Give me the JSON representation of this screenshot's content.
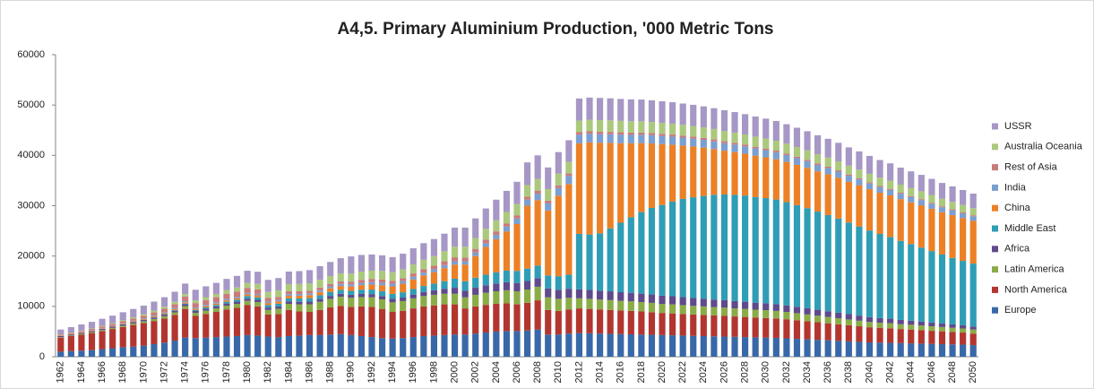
{
  "chart_data": {
    "type": "stacked-bar",
    "title": "A4,5. Primary Aluminium Production, '000 Metric Tons",
    "categories": [
      "1962",
      null,
      "1964",
      null,
      "1966",
      null,
      "1968",
      null,
      "1970",
      null,
      "1972",
      null,
      "1974",
      null,
      "1976",
      null,
      "1978",
      null,
      "1980",
      null,
      "1982",
      null,
      "1984",
      null,
      "1986",
      null,
      "1988",
      null,
      "1990",
      null,
      "1992",
      null,
      "1994",
      null,
      "1996",
      null,
      "1998",
      null,
      "2000",
      null,
      "2002",
      null,
      "2004",
      null,
      "2006",
      null,
      "2008",
      null,
      "2010",
      null,
      "2012",
      null,
      "2014",
      null,
      "2016",
      null,
      "2018",
      null,
      "2020",
      null,
      "2022",
      null,
      "2024",
      null,
      "2026",
      null,
      "2028",
      null,
      "2030",
      null,
      "2032",
      null,
      "2034",
      null,
      "2036",
      null,
      "2038",
      null,
      "2040",
      null,
      "2042",
      null,
      "2044",
      null,
      "2046",
      null,
      "2048",
      null,
      "2050"
    ],
    "ylim": [
      0,
      60000
    ],
    "yticks": [
      0,
      10000,
      20000,
      30000,
      40000,
      50000,
      60000
    ],
    "grid": false,
    "legend": "right",
    "series": [
      {
        "name": "Europe",
        "color": "#3868a8",
        "values": [
          1000,
          1100,
          1200,
          1300,
          1500,
          1700,
          1900,
          2000,
          2200,
          2500,
          2800,
          3200,
          3800,
          3700,
          3800,
          3900,
          4000,
          4100,
          4300,
          4200,
          4000,
          3900,
          4100,
          4200,
          4300,
          4300,
          4400,
          4500,
          4300,
          4100,
          3900,
          3700,
          3600,
          3700,
          3900,
          4100,
          4200,
          4300,
          4400,
          4400,
          4600,
          4800,
          5000,
          5100,
          5100,
          5200,
          5400,
          4400,
          4400,
          4600,
          4700,
          4650,
          4600,
          4550,
          4500,
          4450,
          4400,
          4350,
          4300,
          4250,
          4200,
          4150,
          4100,
          4050,
          4000,
          3950,
          3900,
          3850,
          3800,
          3750,
          3650,
          3550,
          3450,
          3350,
          3250,
          3150,
          3050,
          2950,
          2850,
          2800,
          2750,
          2700,
          2650,
          2600,
          2550,
          2500,
          2450,
          2400,
          2300
        ]
      },
      {
        "name": "North America",
        "color": "#b2362f",
        "values": [
          2800,
          3000,
          3200,
          3400,
          3600,
          3800,
          4000,
          4300,
          4500,
          4600,
          4800,
          5100,
          5700,
          4400,
          4700,
          5000,
          5400,
          5600,
          6000,
          5800,
          4400,
          4600,
          5200,
          4800,
          4600,
          5000,
          5400,
          5600,
          5600,
          5900,
          6000,
          5800,
          5300,
          5400,
          5700,
          5900,
          6000,
          6100,
          6000,
          5200,
          5400,
          5500,
          5500,
          5500,
          5300,
          5500,
          5800,
          4900,
          4700,
          4800,
          4900,
          4850,
          4800,
          4750,
          4700,
          4650,
          4600,
          4500,
          4400,
          4350,
          4300,
          4250,
          4200,
          4150,
          4100,
          4050,
          4000,
          3950,
          3900,
          3850,
          3800,
          3700,
          3600,
          3500,
          3400,
          3300,
          3200,
          3100,
          3000,
          2950,
          2900,
          2800,
          2750,
          2700,
          2600,
          2550,
          2450,
          2400,
          2300
        ]
      },
      {
        "name": "Latin America",
        "color": "#8aac46",
        "values": [
          100,
          120,
          150,
          180,
          200,
          230,
          260,
          300,
          350,
          400,
          450,
          500,
          550,
          600,
          650,
          700,
          750,
          800,
          800,
          850,
          900,
          1000,
          1200,
          1400,
          1500,
          1600,
          1700,
          1800,
          1800,
          1850,
          1900,
          1900,
          1900,
          1950,
          2000,
          2050,
          2100,
          2100,
          2100,
          2200,
          2300,
          2400,
          2500,
          2600,
          2600,
          2650,
          2700,
          2500,
          2400,
          2300,
          2000,
          2000,
          1950,
          1950,
          1900,
          1900,
          1850,
          1850,
          1800,
          1800,
          1750,
          1700,
          1700,
          1650,
          1650,
          1600,
          1600,
          1550,
          1550,
          1500,
          1450,
          1400,
          1350,
          1300,
          1250,
          1200,
          1150,
          1100,
          1050,
          1000,
          1000,
          950,
          950,
          900,
          900,
          850,
          850,
          800,
          800
        ]
      },
      {
        "name": "Africa",
        "color": "#5f4a8b",
        "values": [
          200,
          210,
          220,
          230,
          240,
          250,
          260,
          270,
          280,
          300,
          320,
          340,
          360,
          380,
          390,
          400,
          420,
          440,
          450,
          460,
          470,
          480,
          500,
          520,
          540,
          560,
          580,
          600,
          600,
          620,
          640,
          660,
          680,
          700,
          750,
          800,
          900,
          1000,
          1200,
          1300,
          1400,
          1500,
          1550,
          1600,
          1650,
          1700,
          1700,
          1750,
          1800,
          1800,
          1800,
          1780,
          1760,
          1740,
          1720,
          1700,
          1680,
          1660,
          1640,
          1620,
          1600,
          1570,
          1540,
          1510,
          1480,
          1450,
          1420,
          1390,
          1360,
          1330,
          1300,
          1260,
          1220,
          1180,
          1140,
          1100,
          1060,
          1020,
          980,
          940,
          900,
          860,
          820,
          780,
          740,
          700,
          670,
          640,
          600
        ]
      },
      {
        "name": "Middle East",
        "color": "#2f9db5",
        "values": [
          0,
          0,
          0,
          0,
          0,
          0,
          0,
          0,
          20,
          50,
          80,
          100,
          150,
          200,
          250,
          300,
          350,
          400,
          500,
          500,
          500,
          550,
          600,
          650,
          700,
          750,
          800,
          800,
          800,
          850,
          900,
          950,
          1000,
          1050,
          1100,
          1200,
          1300,
          1500,
          1800,
          1900,
          2000,
          2100,
          2200,
          2300,
          2400,
          2450,
          2500,
          2600,
          2700,
          2800,
          11000,
          11000,
          11400,
          12500,
          13800,
          15000,
          16200,
          17200,
          18000,
          18800,
          19500,
          20000,
          20400,
          20800,
          21000,
          21100,
          21100,
          21000,
          20900,
          20800,
          20500,
          20200,
          19900,
          19500,
          19100,
          18700,
          18200,
          17700,
          17200,
          16700,
          16200,
          15700,
          15200,
          14700,
          14200,
          13700,
          13200,
          12800,
          12500
        ]
      },
      {
        "name": "China",
        "color": "#ec8026",
        "values": [
          100,
          100,
          100,
          100,
          100,
          100,
          120,
          150,
          150,
          180,
          200,
          220,
          250,
          250,
          260,
          270,
          280,
          300,
          350,
          380,
          400,
          450,
          500,
          550,
          600,
          650,
          700,
          750,
          850,
          900,
          1000,
          1200,
          1500,
          1700,
          1900,
          2100,
          2300,
          2600,
          2800,
          3300,
          4300,
          5500,
          6600,
          7800,
          9300,
          12500,
          13000,
          12900,
          16000,
          18000,
          18000,
          18300,
          18000,
          17000,
          15800,
          14700,
          13700,
          12800,
          12100,
          11300,
          10600,
          10100,
          9600,
          9100,
          8700,
          8500,
          8300,
          8200,
          8100,
          8000,
          8000,
          8000,
          8000,
          8000,
          8100,
          8100,
          8100,
          8200,
          8200,
          8200,
          8300,
          8300,
          8300,
          8400,
          8400,
          8400,
          8500,
          8500,
          8500
        ]
      },
      {
        "name": "India",
        "color": "#7a9fd1",
        "values": [
          50,
          50,
          60,
          60,
          70,
          80,
          100,
          120,
          150,
          170,
          180,
          200,
          220,
          230,
          240,
          250,
          260,
          270,
          280,
          290,
          300,
          300,
          320,
          340,
          360,
          380,
          400,
          420,
          430,
          450,
          470,
          490,
          500,
          520,
          540,
          560,
          580,
          600,
          650,
          650,
          680,
          750,
          850,
          950,
          1100,
          1200,
          1300,
          1400,
          1500,
          1600,
          1700,
          1700,
          1700,
          1700,
          1700,
          1680,
          1660,
          1640,
          1620,
          1600,
          1580,
          1560,
          1540,
          1520,
          1500,
          1480,
          1460,
          1440,
          1420,
          1400,
          1370,
          1340,
          1310,
          1280,
          1250,
          1220,
          1190,
          1160,
          1130,
          1100,
          1080,
          1060,
          1040,
          1020,
          1000,
          980,
          960,
          940,
          900
        ]
      },
      {
        "name": "Rest of Asia",
        "color": "#c87b7a",
        "values": [
          100,
          150,
          200,
          250,
          300,
          350,
          400,
          450,
          500,
          600,
          700,
          800,
          900,
          900,
          950,
          1000,
          1050,
          1050,
          1000,
          900,
          700,
          600,
          600,
          550,
          500,
          500,
          500,
          500,
          550,
          600,
          650,
          650,
          600,
          600,
          650,
          700,
          700,
          750,
          800,
          750,
          750,
          700,
          700,
          650,
          650,
          600,
          600,
          550,
          550,
          500,
          500,
          500,
          490,
          480,
          470,
          460,
          450,
          440,
          430,
          420,
          410,
          400,
          390,
          380,
          370,
          360,
          350,
          340,
          330,
          320,
          310,
          300,
          290,
          280,
          270,
          260,
          250,
          240,
          230,
          225,
          220,
          215,
          210,
          205,
          200,
          200,
          200,
          200,
          200
        ]
      },
      {
        "name": "Australia Oceania",
        "color": "#abc97c",
        "values": [
          50,
          60,
          80,
          100,
          120,
          150,
          200,
          250,
          300,
          350,
          400,
          450,
          500,
          550,
          600,
          650,
          700,
          800,
          1000,
          1100,
          1200,
          1300,
          1400,
          1450,
          1500,
          1550,
          1550,
          1600,
          1600,
          1650,
          1650,
          1700,
          1700,
          1750,
          1800,
          1850,
          1900,
          2000,
          2100,
          2150,
          2150,
          2200,
          2200,
          2250,
          2250,
          2300,
          2300,
          2300,
          2300,
          2300,
          2300,
          2300,
          2300,
          2280,
          2260,
          2240,
          2220,
          2200,
          2180,
          2160,
          2140,
          2120,
          2100,
          2080,
          2060,
          2040,
          2020,
          2000,
          1980,
          1960,
          1930,
          1900,
          1870,
          1840,
          1810,
          1780,
          1750,
          1720,
          1690,
          1660,
          1630,
          1600,
          1580,
          1560,
          1540,
          1500,
          1470,
          1440,
          1400
        ]
      },
      {
        "name": "USSR",
        "color": "#a697c6",
        "values": [
          1000,
          1100,
          1200,
          1300,
          1400,
          1500,
          1600,
          1650,
          1700,
          1800,
          1900,
          2000,
          2100,
          2100,
          2150,
          2200,
          2250,
          2300,
          2400,
          2400,
          2400,
          2450,
          2500,
          2550,
          2600,
          2700,
          2800,
          3000,
          3400,
          3300,
          3200,
          3100,
          3000,
          3100,
          3200,
          3300,
          3400,
          3500,
          3800,
          3800,
          3900,
          4000,
          4100,
          4200,
          4400,
          4500,
          4700,
          4300,
          4300,
          4300,
          4400,
          4400,
          4400,
          4380,
          4360,
          4340,
          4320,
          4300,
          4280,
          4250,
          4220,
          4190,
          4160,
          4130,
          4100,
          4070,
          4040,
          4000,
          3960,
          3920,
          3880,
          3840,
          3800,
          3760,
          3720,
          3680,
          3640,
          3600,
          3560,
          3500,
          3440,
          3380,
          3320,
          3260,
          3200,
          3140,
          3080,
          3000,
          2900
        ]
      }
    ]
  }
}
